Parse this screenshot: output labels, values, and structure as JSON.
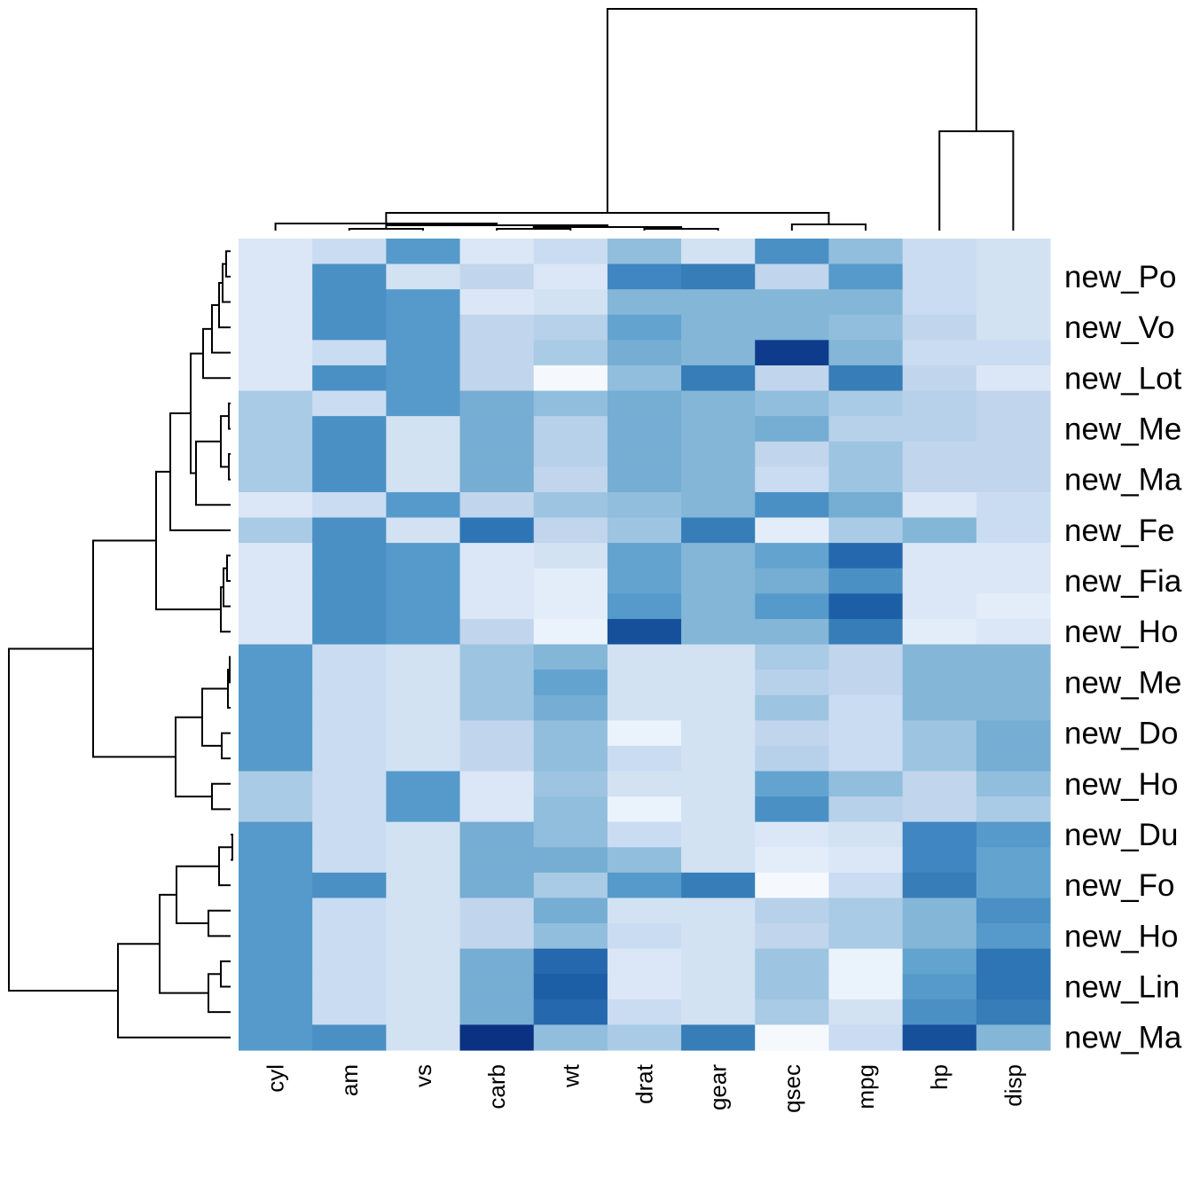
{
  "chart_data": {
    "type": "heatmap",
    "title": "",
    "column_labels": [
      "cyl",
      "am",
      "vs",
      "carb",
      "wt",
      "drat",
      "gear",
      "qsec",
      "mpg",
      "hp",
      "disp"
    ],
    "row_labels": [
      "new_Po",
      "new_Vo",
      "new_Lot",
      "new_Me",
      "new_Ma",
      "new_Fe",
      "new_Fia",
      "new_Ho",
      "new_Me",
      "new_Do",
      "new_Ho",
      "new_Du",
      "new_Fo",
      "new_Ho",
      "new_Lin",
      "new_Ma"
    ],
    "row_label_every": 2,
    "value_range": [
      0,
      1
    ],
    "colorscale": [
      [
        0.0,
        "#F5F9FE"
      ],
      [
        0.05,
        "#EAF2FB"
      ],
      [
        0.08,
        "#E3EDF9"
      ],
      [
        0.12,
        "#DBE7F6"
      ],
      [
        0.17,
        "#D2E2F2"
      ],
      [
        0.22,
        "#CADCF1"
      ],
      [
        0.27,
        "#C1D5EC"
      ],
      [
        0.32,
        "#B7D1EA"
      ],
      [
        0.37,
        "#A9CBE5"
      ],
      [
        0.42,
        "#9DC4E0"
      ],
      [
        0.47,
        "#91BEDD"
      ],
      [
        0.52,
        "#83B6D7"
      ],
      [
        0.57,
        "#75ADD3"
      ],
      [
        0.63,
        "#63A3D0"
      ],
      [
        0.68,
        "#559ACA"
      ],
      [
        0.72,
        "#4A90C5"
      ],
      [
        0.76,
        "#3F86C2"
      ],
      [
        0.8,
        "#377DB8"
      ],
      [
        0.83,
        "#2E75B5"
      ],
      [
        0.87,
        "#2668AD"
      ],
      [
        0.9,
        "#1D5FA6"
      ],
      [
        0.94,
        "#16509B"
      ],
      [
        0.98,
        "#0E3B8B"
      ],
      [
        1.0,
        "#0B3182"
      ]
    ],
    "matrix": [
      [
        0.12,
        0.22,
        0.68,
        0.12,
        0.22,
        0.47,
        0.17,
        0.72,
        0.47,
        0.22,
        0.17
      ],
      [
        0.12,
        0.72,
        0.17,
        0.27,
        0.12,
        0.76,
        0.8,
        0.27,
        0.68,
        0.22,
        0.17
      ],
      [
        0.12,
        0.72,
        0.68,
        0.12,
        0.17,
        0.52,
        0.52,
        0.52,
        0.52,
        0.22,
        0.17
      ],
      [
        0.12,
        0.72,
        0.68,
        0.27,
        0.32,
        0.63,
        0.52,
        0.52,
        0.47,
        0.27,
        0.17
      ],
      [
        0.12,
        0.22,
        0.68,
        0.27,
        0.37,
        0.57,
        0.52,
        0.98,
        0.52,
        0.22,
        0.22
      ],
      [
        0.12,
        0.72,
        0.68,
        0.27,
        0.0,
        0.47,
        0.8,
        0.27,
        0.8,
        0.27,
        0.12
      ],
      [
        0.37,
        0.22,
        0.68,
        0.57,
        0.47,
        0.57,
        0.52,
        0.47,
        0.37,
        0.32,
        0.27
      ],
      [
        0.37,
        0.72,
        0.17,
        0.57,
        0.32,
        0.57,
        0.52,
        0.57,
        0.32,
        0.32,
        0.27
      ],
      [
        0.37,
        0.72,
        0.17,
        0.57,
        0.32,
        0.57,
        0.52,
        0.27,
        0.42,
        0.27,
        0.27
      ],
      [
        0.37,
        0.72,
        0.17,
        0.57,
        0.27,
        0.57,
        0.52,
        0.22,
        0.42,
        0.27,
        0.27
      ],
      [
        0.12,
        0.22,
        0.68,
        0.27,
        0.42,
        0.47,
        0.52,
        0.72,
        0.57,
        0.12,
        0.22
      ],
      [
        0.37,
        0.72,
        0.17,
        0.83,
        0.27,
        0.42,
        0.8,
        0.08,
        0.37,
        0.52,
        0.22
      ],
      [
        0.12,
        0.72,
        0.68,
        0.12,
        0.17,
        0.63,
        0.52,
        0.63,
        0.87,
        0.12,
        0.12
      ],
      [
        0.12,
        0.72,
        0.68,
        0.12,
        0.08,
        0.63,
        0.52,
        0.57,
        0.72,
        0.12,
        0.12
      ],
      [
        0.12,
        0.72,
        0.68,
        0.12,
        0.08,
        0.68,
        0.52,
        0.68,
        0.9,
        0.12,
        0.08
      ],
      [
        0.12,
        0.72,
        0.68,
        0.27,
        0.05,
        0.94,
        0.52,
        0.52,
        0.8,
        0.08,
        0.12
      ],
      [
        0.68,
        0.22,
        0.17,
        0.42,
        0.52,
        0.17,
        0.17,
        0.37,
        0.27,
        0.52,
        0.52
      ],
      [
        0.68,
        0.22,
        0.17,
        0.42,
        0.63,
        0.17,
        0.17,
        0.32,
        0.27,
        0.52,
        0.52
      ],
      [
        0.68,
        0.22,
        0.17,
        0.42,
        0.57,
        0.17,
        0.17,
        0.42,
        0.22,
        0.52,
        0.52
      ],
      [
        0.68,
        0.22,
        0.17,
        0.27,
        0.47,
        0.05,
        0.17,
        0.27,
        0.22,
        0.42,
        0.57
      ],
      [
        0.68,
        0.22,
        0.17,
        0.27,
        0.47,
        0.22,
        0.17,
        0.32,
        0.22,
        0.42,
        0.57
      ],
      [
        0.37,
        0.22,
        0.68,
        0.12,
        0.42,
        0.17,
        0.17,
        0.63,
        0.47,
        0.27,
        0.47
      ],
      [
        0.37,
        0.22,
        0.68,
        0.12,
        0.47,
        0.05,
        0.17,
        0.72,
        0.32,
        0.27,
        0.37
      ],
      [
        0.68,
        0.22,
        0.17,
        0.57,
        0.47,
        0.22,
        0.17,
        0.12,
        0.17,
        0.76,
        0.68
      ],
      [
        0.68,
        0.22,
        0.17,
        0.57,
        0.57,
        0.47,
        0.17,
        0.08,
        0.12,
        0.76,
        0.63
      ],
      [
        0.68,
        0.72,
        0.17,
        0.57,
        0.37,
        0.68,
        0.8,
        0.0,
        0.22,
        0.8,
        0.63
      ],
      [
        0.68,
        0.22,
        0.17,
        0.27,
        0.57,
        0.17,
        0.17,
        0.32,
        0.37,
        0.52,
        0.72
      ],
      [
        0.68,
        0.22,
        0.17,
        0.27,
        0.47,
        0.22,
        0.17,
        0.27,
        0.37,
        0.52,
        0.68
      ],
      [
        0.68,
        0.22,
        0.17,
        0.57,
        0.87,
        0.12,
        0.17,
        0.42,
        0.05,
        0.63,
        0.83
      ],
      [
        0.68,
        0.22,
        0.17,
        0.57,
        0.9,
        0.12,
        0.17,
        0.42,
        0.05,
        0.68,
        0.83
      ],
      [
        0.68,
        0.22,
        0.17,
        0.57,
        0.87,
        0.22,
        0.17,
        0.37,
        0.17,
        0.72,
        0.8
      ],
      [
        0.68,
        0.72,
        0.17,
        1.0,
        0.47,
        0.37,
        0.8,
        0.0,
        0.22,
        0.94,
        0.52
      ]
    ]
  }
}
